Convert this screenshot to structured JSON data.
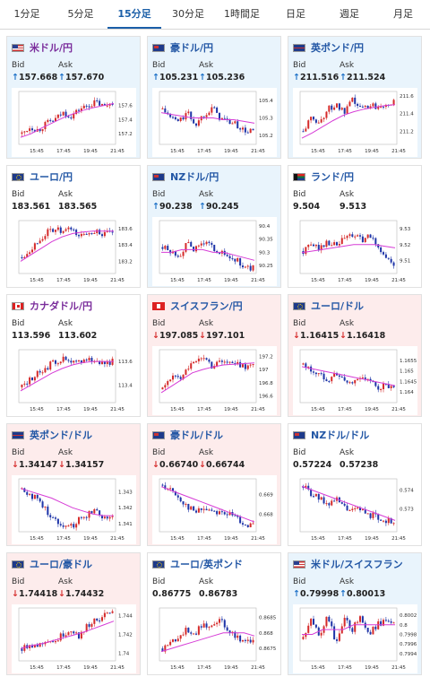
{
  "tabs": [
    {
      "label": "1分足",
      "active": false
    },
    {
      "label": "5分足",
      "active": false
    },
    {
      "label": "15分足",
      "active": true
    },
    {
      "label": "30分足",
      "active": false
    },
    {
      "label": "1時間足",
      "active": false
    },
    {
      "label": "日足",
      "active": false
    },
    {
      "label": "週足",
      "active": false
    },
    {
      "label": "月足",
      "active": false
    }
  ],
  "labels": {
    "bid": "Bid",
    "ask": "Ask"
  },
  "colors": {
    "candle_up": "#d52b2b",
    "candle_down": "#1f35a8",
    "ma_line": "#d63cd6",
    "arrow_up": "#1a6fc6",
    "arrow_down": "#d52b2b",
    "title_blue": "#2357a5"
  },
  "cards": [
    {
      "title": "米ドル/円",
      "flag": "us-jp-flag",
      "bid": "157.668",
      "ask": "157.670",
      "dir": "up",
      "title_color": "purple",
      "chart_data": {
        "type": "candlestick",
        "x_ticks": [
          "15:45",
          "17:45",
          "19:45",
          "21:45"
        ],
        "y_ticks": [
          "157.6",
          "157.4",
          "157.2"
        ],
        "ylim": [
          157.05,
          157.8
        ],
        "ma": [
          157.15,
          157.2,
          157.28,
          157.35,
          157.42,
          157.48,
          157.53,
          157.57,
          157.6,
          157.63
        ],
        "closes": [
          157.2,
          157.3,
          157.25,
          157.35,
          157.4,
          157.5,
          157.45,
          157.55,
          157.6,
          157.65,
          157.58,
          157.66
        ],
        "trend": "up"
      }
    },
    {
      "title": "豪ドル/円",
      "flag": "au-jp-flag",
      "bid": "105.231",
      "ask": "105.236",
      "dir": "up",
      "title_color": "blue",
      "chart_data": {
        "type": "candlestick",
        "x_ticks": [
          "15:45",
          "17:45",
          "19:45",
          "21:45"
        ],
        "y_ticks": [
          "105.4",
          "105.3",
          "105.2"
        ],
        "ylim": [
          105.15,
          105.45
        ],
        "ma": [
          105.33,
          105.32,
          105.31,
          105.3,
          105.3,
          105.3,
          105.29,
          105.29,
          105.28,
          105.27
        ],
        "closes": [
          105.35,
          105.3,
          105.28,
          105.33,
          105.26,
          105.32,
          105.36,
          105.3,
          105.28,
          105.26,
          105.22,
          105.23
        ],
        "trend": "flat"
      }
    },
    {
      "title": "英ポンド/円",
      "flag": "gb-jp-flag",
      "bid": "211.516",
      "ask": "211.524",
      "dir": "up",
      "title_color": "blue",
      "chart_data": {
        "type": "candlestick",
        "x_ticks": [
          "15:45",
          "17:45",
          "19:45",
          "21:45"
        ],
        "y_ticks": [
          "211.6",
          "211.4",
          "211.2"
        ],
        "ylim": [
          211.05,
          211.65
        ],
        "ma": [
          211.12,
          211.18,
          211.25,
          211.32,
          211.38,
          211.42,
          211.45,
          211.47,
          211.49,
          211.5
        ],
        "closes": [
          211.2,
          211.35,
          211.3,
          211.45,
          211.5,
          211.4,
          211.55,
          211.45,
          211.5,
          211.48,
          211.52,
          211.52
        ],
        "trend": "up"
      }
    },
    {
      "title": "ユーロ/円",
      "flag": "eu-jp-flag",
      "bid": "183.561",
      "ask": "183.565",
      "dir": "none",
      "title_color": "blue",
      "chart_data": {
        "type": "candlestick",
        "x_ticks": [
          "15:45",
          "17:45",
          "19:45",
          "21:45"
        ],
        "y_ticks": [
          "183.6",
          "183.4",
          "183.2"
        ],
        "ylim": [
          183.05,
          183.7
        ],
        "ma": [
          183.2,
          183.28,
          183.36,
          183.44,
          183.5,
          183.54,
          183.56,
          183.57,
          183.57,
          183.57
        ],
        "closes": [
          183.25,
          183.35,
          183.45,
          183.55,
          183.6,
          183.55,
          183.6,
          183.5,
          183.55,
          183.58,
          183.52,
          183.56
        ],
        "trend": "up"
      }
    },
    {
      "title": "NZドル/円",
      "flag": "nz-jp-flag",
      "bid": "90.238",
      "ask": "90.245",
      "dir": "up",
      "title_color": "blue",
      "chart_data": {
        "type": "candlestick",
        "x_ticks": [
          "15:45",
          "17:45",
          "19:45",
          "21:45"
        ],
        "y_ticks": [
          "90.4",
          "90.35",
          "90.3",
          "90.25"
        ],
        "ylim": [
          90.22,
          90.42
        ],
        "ma": [
          90.3,
          90.3,
          90.31,
          90.31,
          90.31,
          90.3,
          90.3,
          90.29,
          90.28,
          90.27
        ],
        "closes": [
          90.32,
          90.3,
          90.29,
          90.33,
          90.31,
          90.34,
          90.32,
          90.3,
          90.28,
          90.27,
          90.24,
          90.24
        ],
        "trend": "flat"
      }
    },
    {
      "title": "ランド/円",
      "flag": "za-jp-flag",
      "bid": "9.504",
      "ask": "9.513",
      "dir": "none",
      "title_color": "blue",
      "chart_data": {
        "type": "candlestick",
        "x_ticks": [
          "15:45",
          "17:45",
          "19:45",
          "21:45"
        ],
        "y_ticks": [
          "9.53",
          "9.52",
          "9.51"
        ],
        "ylim": [
          9.502,
          9.535
        ],
        "ma": [
          9.515,
          9.516,
          9.517,
          9.518,
          9.519,
          9.52,
          9.52,
          9.52,
          9.519,
          9.518
        ],
        "closes": [
          9.516,
          9.52,
          9.518,
          9.522,
          9.519,
          9.524,
          9.526,
          9.523,
          9.525,
          9.52,
          9.512,
          9.507
        ],
        "trend": "flat"
      }
    },
    {
      "title": "カナダドル/円",
      "flag": "ca-jp-flag",
      "bid": "113.596",
      "ask": "113.602",
      "dir": "none",
      "title_color": "purple",
      "chart_data": {
        "type": "candlestick",
        "x_ticks": [
          "15:45",
          "17:45",
          "19:45",
          "21:45"
        ],
        "y_ticks": [
          "113.6",
          "113.4"
        ],
        "ylim": [
          113.25,
          113.7
        ],
        "ma": [
          113.35,
          113.4,
          113.45,
          113.5,
          113.54,
          113.57,
          113.59,
          113.6,
          113.6,
          113.6
        ],
        "closes": [
          113.38,
          113.45,
          113.5,
          113.55,
          113.6,
          113.62,
          113.58,
          113.6,
          113.63,
          113.6,
          113.59,
          113.6
        ],
        "trend": "up"
      }
    },
    {
      "title": "スイスフラン/円",
      "flag": "ch-jp-flag",
      "bid": "197.085",
      "ask": "197.101",
      "dir": "down",
      "title_color": "blue",
      "chart_data": {
        "type": "candlestick",
        "x_ticks": [
          "15:45",
          "17:45",
          "19:45",
          "21:45"
        ],
        "y_ticks": [
          "197.2",
          "197",
          "196.8",
          "196.6"
        ],
        "ylim": [
          196.5,
          197.3
        ],
        "ma": [
          196.65,
          196.75,
          196.85,
          196.95,
          197.0,
          197.04,
          197.07,
          197.08,
          197.09,
          197.1
        ],
        "closes": [
          196.7,
          196.9,
          196.85,
          197.05,
          197.1,
          197.2,
          197.05,
          197.15,
          197.1,
          197.08,
          197.05,
          197.09
        ],
        "trend": "up"
      }
    },
    {
      "title": "ユーロ/ドル",
      "flag": "eu-us-flag",
      "bid": "1.16415",
      "ask": "1.16418",
      "dir": "down",
      "title_color": "blue",
      "chart_data": {
        "type": "candlestick",
        "x_ticks": [
          "15:45",
          "17:45",
          "19:45",
          "21:45"
        ],
        "y_ticks": [
          "1.1655",
          "1.165",
          "1.1645",
          "1.164"
        ],
        "ylim": [
          1.1635,
          1.166
        ],
        "ma": [
          1.1652,
          1.1651,
          1.165,
          1.1649,
          1.1648,
          1.1647,
          1.1646,
          1.1645,
          1.1644,
          1.1643
        ],
        "closes": [
          1.1653,
          1.165,
          1.1648,
          1.1646,
          1.1649,
          1.1645,
          1.1644,
          1.1648,
          1.1645,
          1.1642,
          1.1643,
          1.1641
        ],
        "trend": "down"
      }
    },
    {
      "title": "英ポンド/ドル",
      "flag": "gb-us-flag",
      "bid": "1.34147",
      "ask": "1.34157",
      "dir": "down",
      "title_color": "blue",
      "chart_data": {
        "type": "candlestick",
        "x_ticks": [
          "15:45",
          "17:45",
          "19:45",
          "21:45"
        ],
        "y_ticks": [
          "1.343",
          "1.342",
          "1.341"
        ],
        "ylim": [
          1.3405,
          1.3438
        ],
        "ma": [
          1.3432,
          1.343,
          1.3428,
          1.3426,
          1.3423,
          1.342,
          1.3418,
          1.3416,
          1.3415,
          1.3415
        ],
        "closes": [
          1.3432,
          1.3428,
          1.3425,
          1.3418,
          1.3412,
          1.341,
          1.3408,
          1.3413,
          1.3416,
          1.3419,
          1.3414,
          1.3415
        ],
        "trend": "down"
      }
    },
    {
      "title": "豪ドル/ドル",
      "flag": "au-us-flag",
      "bid": "0.66740",
      "ask": "0.66744",
      "dir": "down",
      "title_color": "blue",
      "chart_data": {
        "type": "candlestick",
        "x_ticks": [
          "15:45",
          "17:45",
          "19:45",
          "21:45"
        ],
        "y_ticks": [
          "0.669",
          "0.668"
        ],
        "ylim": [
          0.6671,
          0.6698
        ],
        "ma": [
          0.6694,
          0.6692,
          0.669,
          0.6688,
          0.6686,
          0.6684,
          0.6682,
          0.668,
          0.6678,
          0.6676
        ],
        "closes": [
          0.6695,
          0.6692,
          0.6688,
          0.6684,
          0.6681,
          0.6683,
          0.6682,
          0.6681,
          0.668,
          0.6678,
          0.6675,
          0.6674
        ],
        "trend": "down"
      }
    },
    {
      "title": "NZドル/ドル",
      "flag": "nz-us-flag",
      "bid": "0.57224",
      "ask": "0.57238",
      "dir": "none",
      "title_color": "blue",
      "chart_data": {
        "type": "candlestick",
        "x_ticks": [
          "15:45",
          "17:45",
          "19:45",
          "21:45"
        ],
        "y_ticks": [
          "0.574",
          "0.573"
        ],
        "ylim": [
          0.5718,
          0.5746
        ],
        "ma": [
          0.5742,
          0.574,
          0.5738,
          0.5736,
          0.5734,
          0.5732,
          0.573,
          0.5728,
          0.5726,
          0.5724
        ],
        "closes": [
          0.5742,
          0.5738,
          0.5735,
          0.5733,
          0.5735,
          0.5731,
          0.5729,
          0.573,
          0.5727,
          0.5726,
          0.5724,
          0.5723
        ],
        "trend": "down"
      }
    },
    {
      "title": "ユーロ/豪ドル",
      "flag": "eu-au-flag",
      "bid": "1.74418",
      "ask": "1.74432",
      "dir": "down",
      "title_color": "blue",
      "chart_data": {
        "type": "candlestick",
        "x_ticks": [
          "15:45",
          "17:45",
          "19:45",
          "21:45"
        ],
        "y_ticks": [
          "1.744",
          "1.742",
          "1.74"
        ],
        "ylim": [
          1.7392,
          1.7448
        ],
        "ma": [
          1.7405,
          1.7408,
          1.741,
          1.7413,
          1.7416,
          1.7419,
          1.7422,
          1.7426,
          1.743,
          1.7434
        ],
        "closes": [
          1.7405,
          1.741,
          1.7408,
          1.7415,
          1.7412,
          1.742,
          1.7425,
          1.7418,
          1.743,
          1.7435,
          1.744,
          1.7442
        ],
        "trend": "up"
      }
    },
    {
      "title": "ユーロ/英ポンド",
      "flag": "eu-gb-flag",
      "bid": "0.86775",
      "ask": "0.86783",
      "dir": "none",
      "title_color": "blue",
      "chart_data": {
        "type": "candlestick",
        "x_ticks": [
          "15:45",
          "17:45",
          "19:45",
          "21:45"
        ],
        "y_ticks": [
          "0.8685",
          "0.868",
          "0.8675"
        ],
        "ylim": [
          0.8671,
          0.8688
        ],
        "ma": [
          0.8674,
          0.8675,
          0.8676,
          0.8677,
          0.8678,
          0.8679,
          0.868,
          0.868,
          0.868,
          0.8679
        ],
        "closes": [
          0.8675,
          0.8677,
          0.8679,
          0.8681,
          0.868,
          0.8683,
          0.8682,
          0.8684,
          0.8681,
          0.8679,
          0.8677,
          0.8678
        ],
        "trend": "flat"
      }
    },
    {
      "title": "米ドル/スイスフラン",
      "flag": "us-ch-flag",
      "bid": "0.79998",
      "ask": "0.80013",
      "dir": "up",
      "title_color": "blue",
      "chart_data": {
        "type": "candlestick",
        "x_ticks": [
          "15:45",
          "17:45",
          "19:45",
          "21:45"
        ],
        "y_ticks": [
          "0.8002",
          "0.8",
          "0.7998",
          "0.7996",
          "0.7994"
        ],
        "ylim": [
          0.79925,
          0.80035
        ],
        "ma": [
          0.7998,
          0.7998,
          0.7999,
          0.7999,
          0.7999,
          0.8,
          0.8,
          0.8,
          0.8,
          0.8
        ],
        "closes": [
          0.7997,
          0.8001,
          0.7998,
          0.8002,
          0.7996,
          0.8001,
          0.7999,
          0.8002,
          0.7998,
          0.8,
          0.8001,
          0.8
        ],
        "trend": "flat"
      }
    }
  ]
}
